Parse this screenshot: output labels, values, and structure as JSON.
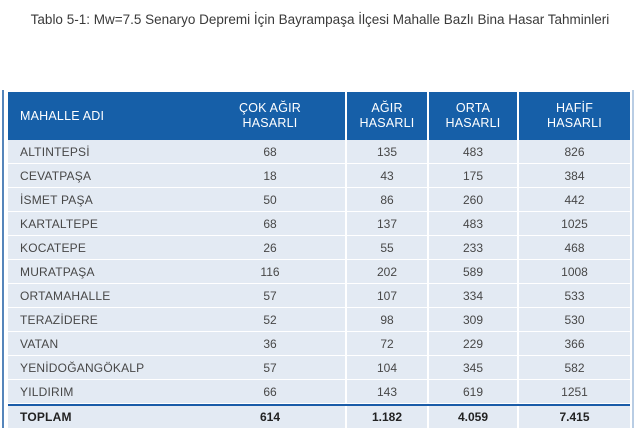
{
  "caption": "Tablo 5-1: Mw=7.5 Senaryo Depremi İçin Bayrampaşa İlçesi Mahalle Bazlı Bina Hasar Tahminleri",
  "table": {
    "columns": [
      {
        "label": "MAHALLE ADI",
        "lines": [
          "MAHALLE ADI"
        ]
      },
      {
        "label": "ÇOK AĞIR HASARLI",
        "lines": [
          "ÇOK AĞIR",
          "HASARLI"
        ]
      },
      {
        "label": "AĞIR HASARLI",
        "lines": [
          "AĞIR",
          "HASARLI"
        ]
      },
      {
        "label": "ORTA HASARLI",
        "lines": [
          "ORTA",
          "HASARLI"
        ]
      },
      {
        "label": "HAFİF HASARLI",
        "lines": [
          "HAFİF",
          "HASARLI"
        ]
      }
    ],
    "rows": [
      {
        "name": "ALTINTEPSİ",
        "values": [
          "68",
          "135",
          "483",
          "826"
        ]
      },
      {
        "name": "CEVATPAŞA",
        "values": [
          "18",
          "43",
          "175",
          "384"
        ]
      },
      {
        "name": "İSMET PAŞA",
        "values": [
          "50",
          "86",
          "260",
          "442"
        ]
      },
      {
        "name": "KARTALTEPE",
        "values": [
          "68",
          "137",
          "483",
          "1025"
        ]
      },
      {
        "name": "KOCATEPE",
        "values": [
          "26",
          "55",
          "233",
          "468"
        ]
      },
      {
        "name": "MURATPAŞA",
        "values": [
          "116",
          "202",
          "589",
          "1008"
        ]
      },
      {
        "name": "ORTAMAHALLE",
        "values": [
          "57",
          "107",
          "334",
          "533"
        ]
      },
      {
        "name": "TERAZİDERE",
        "values": [
          "52",
          "98",
          "309",
          "530"
        ]
      },
      {
        "name": "VATAN",
        "values": [
          "36",
          "72",
          "229",
          "366"
        ]
      },
      {
        "name": "YENİDOĞANGÖKALP",
        "values": [
          "57",
          "104",
          "345",
          "582"
        ]
      },
      {
        "name": "YILDIRIM",
        "values": [
          "66",
          "143",
          "619",
          "1251"
        ]
      }
    ],
    "total": {
      "label": "TOPLAM",
      "values": [
        "614",
        "1.182",
        "4.059",
        "7.415"
      ]
    }
  },
  "colors": {
    "header_bg": "#165fa8",
    "header_text": "#ffffff",
    "row_bg": "#e3eaf3",
    "body_text": "#474747",
    "total_rule": "#1a5ca8",
    "accent_line_left": "#5585bb",
    "accent_line_right": "#b9cde4",
    "page_bg": "#ffffff"
  }
}
